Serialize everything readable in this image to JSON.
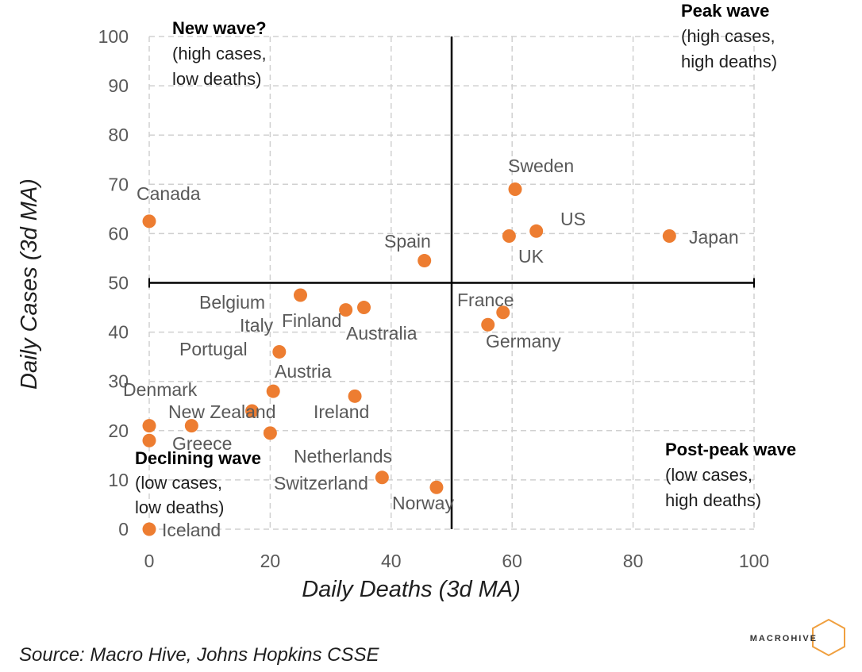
{
  "chart_data": {
    "type": "scatter",
    "xlabel": "Daily Deaths (3d MA)",
    "ylabel": "Daily Cases (3d MA)",
    "xlim": [
      0,
      100
    ],
    "ylim": [
      0,
      100
    ],
    "x_ticks": [
      0,
      20,
      40,
      60,
      80,
      100
    ],
    "y_ticks": [
      0,
      10,
      20,
      30,
      40,
      50,
      60,
      70,
      80,
      90,
      100
    ],
    "grid": true,
    "divider_lines": {
      "x": 50,
      "y": 50
    },
    "marker_color": "#ED7D31",
    "points": [
      {
        "label": "Canada",
        "x": 0,
        "y": 62.5
      },
      {
        "label": "Sweden",
        "x": 60.5,
        "y": 69
      },
      {
        "label": "US",
        "x": 64,
        "y": 60.5
      },
      {
        "label": "UK",
        "x": 59.5,
        "y": 59.5
      },
      {
        "label": "Japan",
        "x": 86,
        "y": 59.5
      },
      {
        "label": "Spain",
        "x": 45.5,
        "y": 54.5
      },
      {
        "label": "Belgium",
        "x": 25,
        "y": 47.5
      },
      {
        "label": "Finland",
        "x": 32.5,
        "y": 44.5
      },
      {
        "label": "Australia",
        "x": 35.5,
        "y": 45
      },
      {
        "label": "Italy",
        "x": 21.5,
        "y": 36
      },
      {
        "label": "France",
        "x": 58.5,
        "y": 44
      },
      {
        "label": "Germany",
        "x": 56,
        "y": 41.5
      },
      {
        "label": "Portugal",
        "x": 20.5,
        "y": 28
      },
      {
        "label": "Austria",
        "x": 34,
        "y": 27
      },
      {
        "label": "Ireland",
        "x": 20,
        "y": 19.5
      },
      {
        "label": "New Zealand",
        "x": 17,
        "y": 24
      },
      {
        "label": "Denmark",
        "x": 0,
        "y": 21
      },
      {
        "label": "Greece",
        "x": 7,
        "y": 21
      },
      {
        "label": "Netherlands",
        "x": 0,
        "y": 18
      },
      {
        "label": "Switzerland",
        "x": 38.5,
        "y": 10.5
      },
      {
        "label": "Norway",
        "x": 47.5,
        "y": 8.5
      },
      {
        "label": "Iceland",
        "x": 0,
        "y": 0
      }
    ],
    "quadrants": [
      {
        "title": "New wave?",
        "lines": [
          "(high cases,",
          "low deaths)"
        ]
      },
      {
        "title": "Peak wave",
        "lines": [
          "(high cases,",
          "high deaths)"
        ]
      },
      {
        "title": "Declining wave",
        "lines": [
          "(low cases,",
          "low deaths)"
        ]
      },
      {
        "title": "Post-peak wave",
        "lines": [
          "(low cases,",
          "high deaths)"
        ]
      }
    ]
  },
  "source": "Source: Macro Hive, Johns Hopkins CSSE",
  "logo": "MACROHIVE",
  "logo_color": "#F0A040"
}
